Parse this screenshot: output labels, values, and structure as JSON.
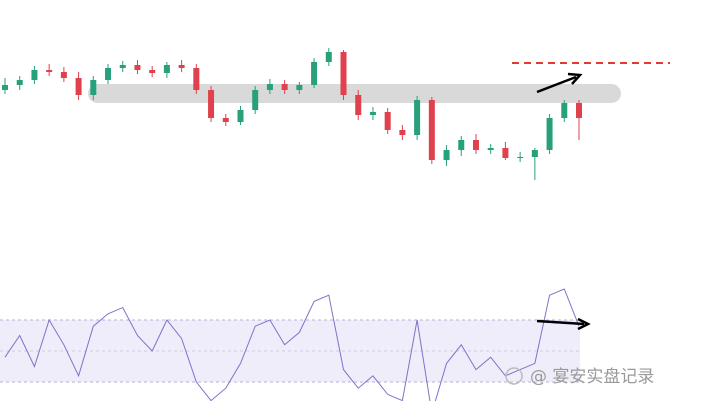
{
  "chart_data": [
    {
      "type": "candlestick",
      "up_color": "#26a17b",
      "down_color": "#e0414f",
      "ylim": [
        0,
        200
      ],
      "open": [
        110,
        115,
        120,
        130,
        128,
        122,
        105,
        120,
        132,
        135,
        130,
        127,
        135,
        132,
        110,
        82,
        78,
        90,
        110,
        116,
        110,
        115,
        138,
        148,
        105,
        85,
        88,
        70,
        65,
        100,
        40,
        50,
        60,
        50,
        52,
        42,
        43,
        50,
        82,
        97
      ],
      "high": [
        122,
        124,
        134,
        136,
        133,
        128,
        124,
        136,
        139,
        140,
        134,
        138,
        140,
        136,
        114,
        86,
        94,
        114,
        121,
        120,
        118,
        142,
        152,
        150,
        110,
        93,
        92,
        75,
        104,
        103,
        55,
        64,
        66,
        56,
        58,
        48,
        52,
        86,
        100,
        100
      ],
      "low": [
        106,
        110,
        116,
        124,
        118,
        100,
        100,
        116,
        128,
        126,
        123,
        122,
        128,
        106,
        78,
        74,
        75,
        86,
        106,
        106,
        106,
        112,
        134,
        100,
        80,
        80,
        66,
        60,
        60,
        36,
        34,
        44,
        46,
        46,
        40,
        38,
        20,
        46,
        78,
        60
      ],
      "close": [
        115,
        120,
        130,
        128,
        122,
        105,
        120,
        132,
        135,
        130,
        127,
        135,
        132,
        110,
        82,
        78,
        90,
        110,
        116,
        110,
        115,
        138,
        148,
        105,
        85,
        88,
        70,
        65,
        100,
        40,
        50,
        60,
        50,
        52,
        42,
        43,
        50,
        82,
        97,
        82
      ]
    },
    {
      "type": "line",
      "color": "#7b74c9",
      "ylim": [
        20,
        80
      ],
      "values": [
        48,
        55,
        45,
        60,
        52,
        42,
        58,
        62,
        64,
        55,
        50,
        60,
        54,
        40,
        34,
        38,
        46,
        58,
        60,
        52,
        56,
        66,
        68,
        44,
        38,
        42,
        36,
        34,
        60,
        30,
        46,
        52,
        44,
        48,
        42,
        44,
        46,
        68,
        70,
        58
      ]
    }
  ],
  "watermark": "@ 宴安实盘记录"
}
